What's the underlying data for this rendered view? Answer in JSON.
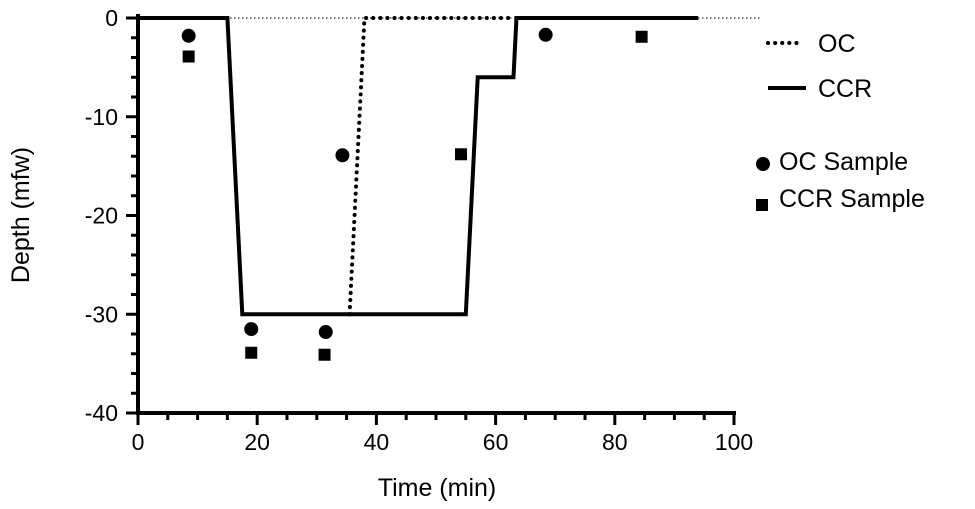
{
  "chart_data": {
    "type": "line",
    "title": "",
    "xlabel": "Time (min)",
    "ylabel": "Depth (mfw)",
    "xlim": [
      0,
      100
    ],
    "ylim": [
      -40,
      0
    ],
    "xticks": [
      0,
      20,
      40,
      60,
      80,
      100
    ],
    "yticks": [
      0,
      -10,
      -20,
      -30,
      -40
    ],
    "grid": false,
    "legend": "right",
    "series": [
      {
        "name": "OC",
        "style": "dotted",
        "kind": "line",
        "x": [
          35.5,
          38,
          63
        ],
        "y": [
          -30,
          0,
          0
        ]
      },
      {
        "name": "CCR",
        "style": "solid",
        "kind": "line",
        "x": [
          0,
          15,
          17.5,
          55,
          57,
          63,
          63.5,
          94
        ],
        "y": [
          0,
          0,
          -30,
          -30,
          -6,
          -6,
          0,
          0
        ]
      },
      {
        "name": "OC Sample",
        "kind": "scatter",
        "marker": "circle",
        "x": [
          8.5,
          19,
          31.5,
          34.3,
          68.4
        ],
        "y": [
          -1.8,
          -31.5,
          -31.8,
          -13.9,
          -1.7
        ]
      },
      {
        "name": "CCR Sample",
        "kind": "scatter",
        "marker": "square",
        "x": [
          8.5,
          19,
          31.3,
          54.2,
          84.5
        ],
        "y": [
          -3.9,
          -33.9,
          -34.1,
          -13.8,
          -1.9
        ]
      }
    ],
    "reference_line": {
      "y": 0,
      "style": "dotted"
    },
    "colors": {
      "ink": "#000000",
      "background": "#ffffff"
    }
  }
}
